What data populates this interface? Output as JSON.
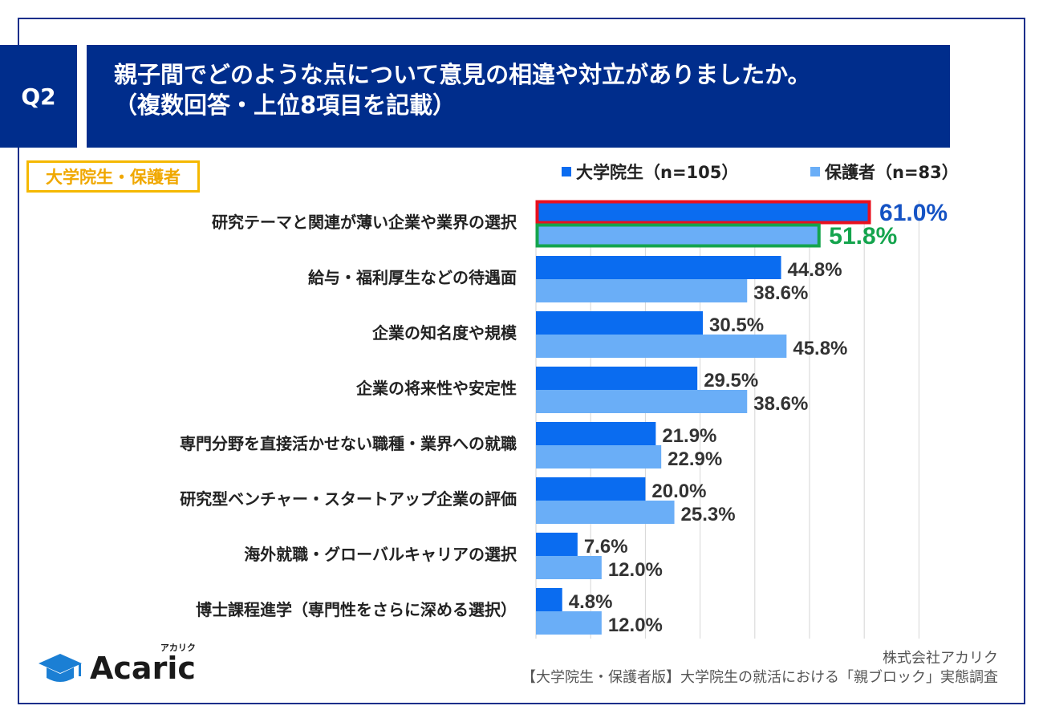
{
  "header": {
    "q_label": "Q2",
    "title_line1": "親子間でどのような点について意見の相違や対立がありましたか。",
    "title_line2": "（複数回答・上位8項目を記載）"
  },
  "badge": "大学院生・保護者",
  "legend": {
    "series1": "大学院生（n=105）",
    "series2": "保護者（n=83）"
  },
  "colors": {
    "navy": "#002d8c",
    "series1": "#0a6cf0",
    "series2": "#6aaef7",
    "highlight1": "#e8101e",
    "highlight2": "#14a44d",
    "label1_highlight": "#1553c4",
    "label2_highlight": "#14a44d"
  },
  "chart_data": {
    "type": "bar",
    "orientation": "horizontal",
    "categories": [
      "研究テーマと関連が薄い企業や業界の選択",
      "給与・福利厚生などの待遇面",
      "企業の知名度や規模",
      "企業の将来性や安定性",
      "専門分野を直接活かせない職種・業界への就職",
      "研究型ベンチャー・スタートアップ企業の評価",
      "海外就職・グローバルキャリアの選択",
      "博士課程進学（専門性をさらに深める選択）"
    ],
    "series": [
      {
        "name": "大学院生（n=105）",
        "values": [
          61.0,
          44.8,
          30.5,
          29.5,
          21.9,
          20.0,
          7.6,
          4.8
        ]
      },
      {
        "name": "保護者（n=83）",
        "values": [
          51.8,
          38.6,
          45.8,
          38.6,
          22.9,
          25.3,
          12.0,
          12.0
        ]
      }
    ],
    "value_suffix": "%",
    "xlim": [
      0,
      70
    ],
    "grid": true,
    "legend_position": "top-right"
  },
  "footer": {
    "company": "株式会社アカリク",
    "survey": "【大学院生・保護者版】大学院生の就活における「親ブロック」実態調査",
    "logo_text": "Acaric",
    "logo_kana": "アカリク"
  }
}
